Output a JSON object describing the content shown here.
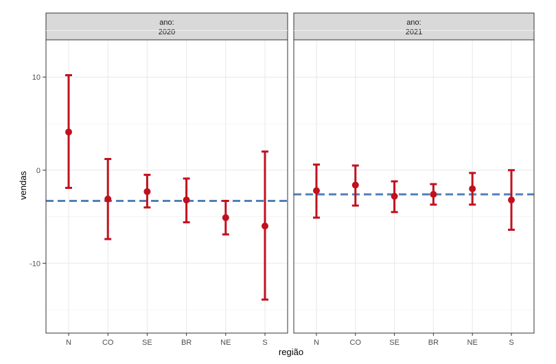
{
  "chart_data": {
    "type": "errorbar",
    "facet_label": "ano:",
    "xlabel": "região",
    "ylabel": "vendas",
    "categories": [
      "N",
      "CO",
      "SE",
      "BR",
      "NE",
      "S"
    ],
    "ylim": [
      -17.5,
      14
    ],
    "yticks": [
      10,
      0,
      -10
    ],
    "ytick_labels": [
      "10",
      "0",
      "-10"
    ],
    "grid": true,
    "colors": {
      "point": "#c0111f",
      "hline": "#4f7fb8",
      "strip_bg": "#d9d9d9",
      "grid": "#ebebeb",
      "border": "#333333"
    },
    "panels": [
      {
        "label": "2020",
        "hline": -3.3,
        "points": [
          {
            "category": "N",
            "mean": 4.1,
            "lower": -1.9,
            "upper": 10.2
          },
          {
            "category": "CO",
            "mean": -3.1,
            "lower": -7.4,
            "upper": 1.2
          },
          {
            "category": "SE",
            "mean": -2.3,
            "lower": -4.0,
            "upper": -0.5
          },
          {
            "category": "BR",
            "mean": -3.2,
            "lower": -5.6,
            "upper": -0.9
          },
          {
            "category": "NE",
            "mean": -5.1,
            "lower": -6.9,
            "upper": -3.3
          },
          {
            "category": "S",
            "mean": -6.0,
            "lower": -13.9,
            "upper": 2.0
          }
        ]
      },
      {
        "label": "2021",
        "hline": -2.6,
        "points": [
          {
            "category": "N",
            "mean": -2.2,
            "lower": -5.1,
            "upper": 0.6
          },
          {
            "category": "CO",
            "mean": -1.6,
            "lower": -3.8,
            "upper": 0.5
          },
          {
            "category": "SE",
            "mean": -2.8,
            "lower": -4.5,
            "upper": -1.2
          },
          {
            "category": "BR",
            "mean": -2.6,
            "lower": -3.7,
            "upper": -1.5
          },
          {
            "category": "NE",
            "mean": -2.0,
            "lower": -3.7,
            "upper": -0.3
          },
          {
            "category": "S",
            "mean": -3.2,
            "lower": -6.4,
            "upper": 0.0
          }
        ]
      }
    ]
  }
}
